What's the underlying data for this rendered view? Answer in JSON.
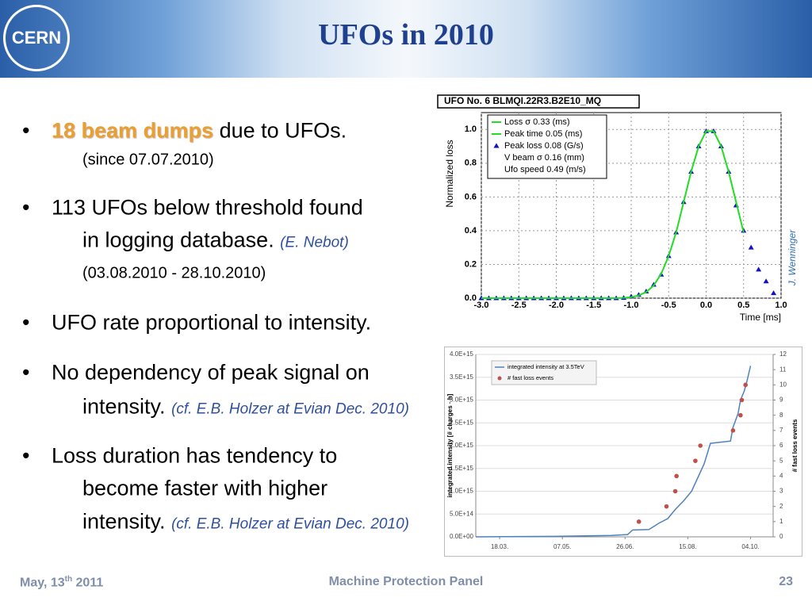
{
  "header": {
    "logo": "CERN",
    "title": "UFOs in 2010"
  },
  "bullets": [
    {
      "lines": [
        {
          "size": "main",
          "segments": [
            {
              "text": "18 beam dumps",
              "style": "highlight"
            },
            {
              "text": " due to UFOs.",
              "style": "plain"
            }
          ]
        },
        {
          "size": "small",
          "segments": [
            {
              "text": "(since 07.07.2010)",
              "style": "plain"
            }
          ]
        }
      ]
    },
    {
      "lines": [
        {
          "size": "main",
          "segments": [
            {
              "text": "113 UFOs below threshold found",
              "style": "plain"
            }
          ]
        },
        {
          "size": "main",
          "segments": [
            {
              "text": "in logging database. ",
              "style": "plain"
            },
            {
              "text": "(E. Nebot)",
              "style": "cite"
            }
          ]
        },
        {
          "size": "small",
          "segments": [
            {
              "text": "(03.08.2010 - 28.10.2010)",
              "style": "plain"
            }
          ]
        }
      ]
    },
    {
      "lines": [
        {
          "size": "main",
          "segments": [
            {
              "text": "UFO rate proportional to intensity.",
              "style": "plain"
            }
          ]
        }
      ]
    },
    {
      "lines": [
        {
          "size": "main",
          "segments": [
            {
              "text": "No dependency of peak signal on",
              "style": "plain"
            }
          ]
        },
        {
          "size": "main",
          "segments": [
            {
              "text": "intensity. ",
              "style": "plain"
            },
            {
              "text": "(cf. E.B. Holzer at Evian Dec. 2010)",
              "style": "cite"
            }
          ]
        }
      ]
    },
    {
      "lines": [
        {
          "size": "main",
          "segments": [
            {
              "text": "Loss duration has tendency to",
              "style": "plain"
            }
          ]
        },
        {
          "size": "main",
          "segments": [
            {
              "text": "become faster with higher",
              "style": "plain"
            }
          ]
        },
        {
          "size": "main",
          "segments": [
            {
              "text": "intensity. ",
              "style": "plain"
            },
            {
              "text": "(cf. E.B. Holzer at Evian Dec. 2010)",
              "style": "cite"
            }
          ]
        }
      ]
    }
  ],
  "chart1": {
    "type": "scatter",
    "title": "UFO No. 6 BLMQI.22R3.B2E10_MQ",
    "ylabel": "Normalized loss",
    "xlabel": "Time [ms]",
    "note": "J. Wenninger",
    "grid": true,
    "xlim": [
      -3.0,
      1.0
    ],
    "ylim": [
      0,
      1.1
    ],
    "xticks": [
      {
        "value": -3,
        "label": "-3.0"
      },
      -2.5,
      {
        "value": -2,
        "label": "-2.0"
      },
      -1.5,
      {
        "value": -1,
        "label": "-1.0"
      },
      -0.5,
      {
        "value": 0,
        "label": "0.0"
      },
      0.5,
      {
        "value": 1,
        "label": "1.0"
      }
    ],
    "yticks": [
      {
        "value": 0,
        "label": "0.0"
      },
      0.2,
      0.4,
      0.6,
      0.8,
      {
        "value": 1,
        "label": "1.0"
      }
    ],
    "legend": [
      {
        "text": "Loss σ   0.33 (ms)",
        "marker": "line"
      },
      {
        "text": "Peak time   0.05 (ms)",
        "marker": "line"
      },
      {
        "text": "Peak loss  0.08 (G/s)",
        "marker": "triangle"
      },
      {
        "text": "V beam σ  0.16 (mm)",
        "marker": "none"
      },
      {
        "text": "Ufo speed   0.49 (m/s)",
        "marker": "none"
      }
    ],
    "x": [
      -3.0,
      -2.9,
      -2.8,
      -2.7,
      -2.6,
      -2.5,
      -2.4,
      -2.3,
      -2.2,
      -2.1,
      -2.0,
      -1.9,
      -1.8,
      -1.7,
      -1.6,
      -1.5,
      -1.4,
      -1.3,
      -1.2,
      -1.1,
      -1.0,
      -0.9,
      -0.8,
      -0.7,
      -0.6,
      -0.5,
      -0.4,
      -0.3,
      -0.2,
      -0.1,
      0.0,
      0.1,
      0.2,
      0.3,
      0.4,
      0.5,
      0.6,
      0.7,
      0.8,
      0.9
    ],
    "series": [
      {
        "color": "#1010c8",
        "marker": "triangle",
        "values": [
          0,
          0,
          0,
          0,
          0,
          0,
          0,
          0,
          0,
          0,
          0,
          0,
          0,
          0,
          0,
          0,
          0,
          0,
          0,
          0.002,
          0.01,
          0.02,
          0.04,
          0.08,
          0.14,
          0.25,
          0.39,
          0.57,
          0.75,
          0.9,
          0.99,
          0.99,
          0.9,
          0.75,
          0.55,
          0.4,
          0.3,
          0.17,
          0.1,
          0.03
        ]
      },
      {
        "color": "#22dd22",
        "marker": "line",
        "values": [
          0,
          0,
          0,
          0,
          0,
          0,
          0,
          0,
          0,
          0,
          0,
          0,
          0,
          0,
          0,
          0,
          0,
          0,
          0,
          0.002,
          0.006,
          0.016,
          0.036,
          0.075,
          0.144,
          0.25,
          0.39,
          0.57,
          0.75,
          0.9,
          0.99,
          0.99,
          0.9,
          0.75,
          0.57,
          0.39,
          null,
          null,
          null,
          null
        ]
      }
    ]
  },
  "chart2": {
    "type": "line",
    "ylabel": "integrated intensity [# charges · h]",
    "y2label": "# fast loss events",
    "grid": true,
    "xlim": [
      "27.02.",
      "22.10."
    ],
    "xticks": [
      "18.03.",
      "07.05.",
      "26.06.",
      "15.08.",
      "04.10."
    ],
    "ylim": [
      0,
      4000000000000000.0
    ],
    "yticks": [
      {
        "value": 0,
        "label": "0.0E+00"
      },
      {
        "value": 500000000000000.0,
        "label": "5.0E+14"
      },
      {
        "value": 1000000000000000.0,
        "label": "1.0E+15"
      },
      {
        "value": 1500000000000000.0,
        "label": "1.5E+15"
      },
      {
        "value": 2000000000000000.0,
        "label": "2.0E+15"
      },
      {
        "value": 2500000000000000.0,
        "label": "2.5E+15"
      },
      {
        "value": 3000000000000000.0,
        "label": "3.0E+15"
      },
      {
        "value": 3500000000000000.0,
        "label": "3.5E+15"
      },
      {
        "value": 4000000000000000.0,
        "label": "4.0E+15"
      }
    ],
    "y2lim": [
      0,
      12
    ],
    "y2ticks": [
      0,
      1,
      2,
      3,
      4,
      5,
      6,
      7,
      8,
      9,
      10,
      11,
      12
    ],
    "series": [
      {
        "name": "integrated intensity at 3.5TeV",
        "color": "#4f81bd",
        "marker": "line",
        "x": [
          "27.02.",
          "01.05.",
          "15.06.",
          "28.06.",
          "02.07.",
          "15.07.",
          "23.07.",
          "30.07.",
          "05.08.",
          "12.08.",
          "18.08.",
          "23.08.",
          "28.08.",
          "02.09.",
          "18.09.",
          "20.09.",
          "24.09.",
          "26.09.",
          "29.09.",
          "01.10.",
          "04.10."
        ],
        "values": [
          0,
          10000000000000.0,
          30000000000000.0,
          50000000000000.0,
          150000000000000.0,
          160000000000000.0,
          300000000000000.0,
          400000000000000.0,
          600000000000000.0,
          800000000000000.0,
          1000000000000000.0,
          1300000000000000.0,
          1600000000000000.0,
          2050000000000000.0,
          2100000000000000.0,
          2400000000000000.0,
          2700000000000000.0,
          3000000000000000.0,
          3200000000000000.0,
          3400000000000000.0,
          3750000000000000.0
        ]
      },
      {
        "name": "# fast loss events",
        "color": "#c0504d",
        "marker": "dot",
        "axis": "y2",
        "x": [
          "07.07.",
          "29.07.",
          "05.08.",
          "06.08.",
          "21.08.",
          "25.08.",
          "20.09.",
          "26.09.",
          "27.09.",
          "30.09."
        ],
        "values": [
          1,
          2,
          3,
          4,
          5,
          6,
          7,
          8,
          9,
          10
        ]
      }
    ]
  },
  "footer": {
    "date": "May, 13",
    "date_sup": "th",
    "date_year": " 2011",
    "center": "Machine Protection Panel",
    "page": "23"
  }
}
